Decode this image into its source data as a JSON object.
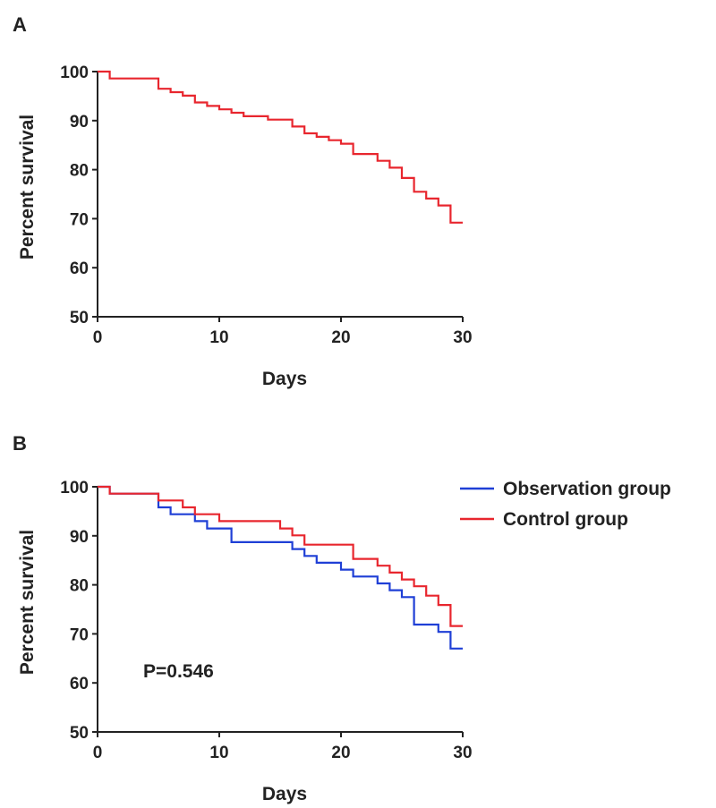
{
  "chart_data": [
    {
      "type": "line",
      "panel": "A",
      "xlabel": "Days",
      "ylabel": "Percent survival",
      "xlim": [
        0,
        30
      ],
      "ylim": [
        50,
        100
      ],
      "xticks": [
        0,
        10,
        20,
        30
      ],
      "yticks": [
        50,
        60,
        70,
        80,
        90,
        100
      ],
      "step": true,
      "series": [
        {
          "color": "#e8262e",
          "x": [
            0,
            1,
            5,
            6,
            7,
            8,
            9,
            10,
            11,
            12,
            14,
            16,
            17,
            18,
            19,
            20,
            21,
            23,
            24,
            25,
            26,
            27,
            28,
            29,
            30
          ],
          "y": [
            100,
            98.6,
            96.5,
            95.8,
            95.1,
            93.7,
            93.0,
            92.3,
            91.6,
            90.9,
            90.2,
            88.8,
            87.4,
            86.7,
            86.0,
            85.3,
            83.2,
            81.8,
            80.4,
            78.3,
            75.5,
            74.1,
            72.7,
            69.2,
            69.2
          ]
        }
      ]
    },
    {
      "type": "line",
      "panel": "B",
      "xlabel": "Days",
      "ylabel": "Percent survival",
      "xlim": [
        0,
        30
      ],
      "ylim": [
        50,
        100
      ],
      "xticks": [
        0,
        10,
        20,
        30
      ],
      "yticks": [
        50,
        60,
        70,
        80,
        90,
        100
      ],
      "step": true,
      "legend_position": "top-right",
      "annotation": "P=0.546",
      "series": [
        {
          "name": "Observation group",
          "color": "#1f3fd6",
          "x": [
            0,
            1,
            5,
            6,
            8,
            9,
            11,
            16,
            17,
            18,
            20,
            21,
            23,
            24,
            25,
            26,
            28,
            29,
            30
          ],
          "y": [
            100,
            98.6,
            95.8,
            94.4,
            93.0,
            91.5,
            88.7,
            87.3,
            85.9,
            84.5,
            83.1,
            81.7,
            80.3,
            78.9,
            77.5,
            71.9,
            70.4,
            67.0,
            67.0
          ]
        },
        {
          "name": "Control group",
          "color": "#e8262e",
          "x": [
            0,
            1,
            5,
            7,
            8,
            10,
            15,
            16,
            17,
            21,
            23,
            24,
            25,
            26,
            27,
            28,
            29,
            30
          ],
          "y": [
            100,
            98.6,
            97.2,
            95.8,
            94.4,
            93.0,
            91.5,
            90.1,
            88.2,
            85.3,
            83.9,
            82.5,
            81.1,
            79.7,
            77.8,
            75.9,
            71.6,
            71.6
          ]
        }
      ]
    }
  ]
}
